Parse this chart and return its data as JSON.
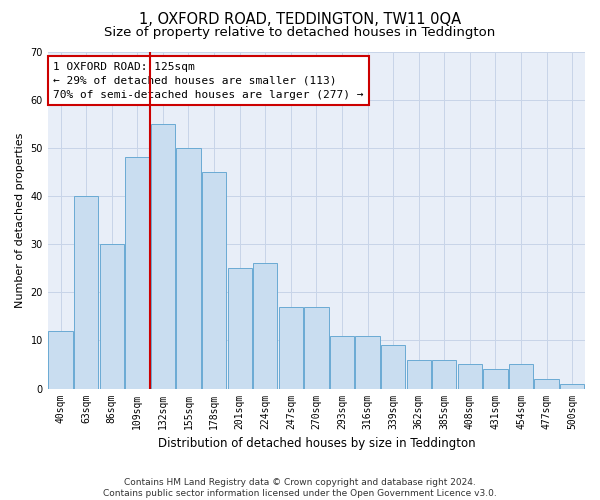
{
  "title": "1, OXFORD ROAD, TEDDINGTON, TW11 0QA",
  "subtitle": "Size of property relative to detached houses in Teddington",
  "xlabel": "Distribution of detached houses by size in Teddington",
  "ylabel": "Number of detached properties",
  "categories": [
    "40sqm",
    "63sqm",
    "86sqm",
    "109sqm",
    "132sqm",
    "155sqm",
    "178sqm",
    "201sqm",
    "224sqm",
    "247sqm",
    "270sqm",
    "293sqm",
    "316sqm",
    "339sqm",
    "362sqm",
    "385sqm",
    "408sqm",
    "431sqm",
    "454sqm",
    "477sqm",
    "500sqm"
  ],
  "values": [
    12,
    40,
    30,
    48,
    55,
    50,
    45,
    25,
    26,
    17,
    17,
    11,
    11,
    9,
    6,
    6,
    5,
    4,
    5,
    2,
    1
  ],
  "bar_color": "#c9ddf0",
  "bar_edge_color": "#6aaad4",
  "vline_color": "#cc0000",
  "annotation_text": "1 OXFORD ROAD: 125sqm\n← 29% of detached houses are smaller (113)\n70% of semi-detached houses are larger (277) →",
  "annotation_box_color": "#ffffff",
  "annotation_box_edge": "#cc0000",
  "ylim": [
    0,
    70
  ],
  "yticks": [
    0,
    10,
    20,
    30,
    40,
    50,
    60,
    70
  ],
  "footer": "Contains HM Land Registry data © Crown copyright and database right 2024.\nContains public sector information licensed under the Open Government Licence v3.0.",
  "bg_color": "#ffffff",
  "plot_bg_color": "#e8eef8",
  "grid_color": "#c8d4e8",
  "title_fontsize": 10.5,
  "subtitle_fontsize": 9.5,
  "xlabel_fontsize": 8.5,
  "ylabel_fontsize": 8,
  "tick_fontsize": 7,
  "annotation_fontsize": 8,
  "footer_fontsize": 6.5
}
